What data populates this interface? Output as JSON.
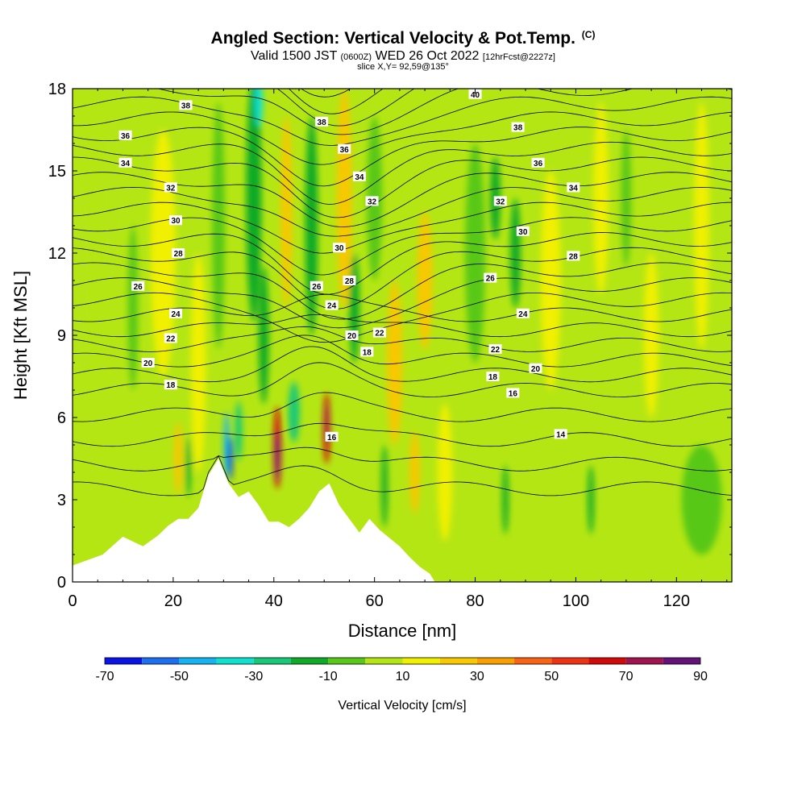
{
  "header": {
    "title": "Angled Section: Vertical Velocity & Pot.Temp.",
    "copyright": "(C)",
    "valid_prefix": "Valid 1500 JST",
    "valid_utc": "(0600Z)",
    "valid_date": "WED 26 Oct 2022",
    "forecast": "[12hrFcst@2227z]",
    "slice": "slice X,Y= 92,59@135°"
  },
  "chart_data": {
    "type": "heatmap",
    "xlabel": "Distance [nm]",
    "ylabel": "Height [Kft MSL]",
    "xlim": [
      0,
      131
    ],
    "ylim": [
      0,
      18
    ],
    "x_ticks": [
      0,
      20,
      40,
      60,
      80,
      100,
      120
    ],
    "y_ticks": [
      0,
      3,
      6,
      9,
      12,
      15,
      18
    ],
    "colorbar": {
      "title": "Vertical Velocity [cm/s]",
      "bounds": [
        -70,
        -60,
        -50,
        -40,
        -30,
        -20,
        -10,
        0,
        10,
        20,
        30,
        40,
        50,
        60,
        70,
        80,
        90
      ],
      "tick_labels": [
        "-70",
        "-50",
        "-30",
        "-10",
        "10",
        "30",
        "50",
        "70",
        "90"
      ],
      "colors": [
        "#0a14e6",
        "#1e6ef0",
        "#14b4f0",
        "#10e0d0",
        "#18c878",
        "#10aa28",
        "#58c818",
        "#b4e614",
        "#f0f000",
        "#f8c800",
        "#f8a000",
        "#f86414",
        "#f03214",
        "#d20a0a",
        "#a01450",
        "#641478"
      ]
    },
    "background_velocity": 0,
    "velocity_features": [
      {
        "x": 2,
        "y": 11,
        "w": 3,
        "h": 8,
        "v": 5
      },
      {
        "x": 8,
        "y": 14,
        "w": 4,
        "h": 6,
        "v": 5
      },
      {
        "x": 12,
        "y": 10,
        "w": 2,
        "h": 6,
        "v": -5
      },
      {
        "x": 18,
        "y": 12,
        "w": 5,
        "h": 9,
        "v": 15
      },
      {
        "x": 21,
        "y": 4.5,
        "w": 1.6,
        "h": 2.6,
        "v": 28
      },
      {
        "x": 23,
        "y": 4.2,
        "w": 1.0,
        "h": 2.2,
        "v": -12
      },
      {
        "x": 25,
        "y": 8,
        "w": 3,
        "h": 8,
        "v": 15
      },
      {
        "x": 29,
        "y": 13,
        "w": 2.5,
        "h": 9,
        "v": -8
      },
      {
        "x": 30.6,
        "y": 5.0,
        "w": 1.1,
        "h": 2.4,
        "v": -45
      },
      {
        "x": 31.4,
        "y": 4.5,
        "w": 0.8,
        "h": 1.6,
        "v": -68
      },
      {
        "x": 33,
        "y": 5.5,
        "w": 1.4,
        "h": 2.2,
        "v": -25
      },
      {
        "x": 36,
        "y": 14,
        "w": 3,
        "h": 9,
        "v": -12
      },
      {
        "x": 37,
        "y": 17.5,
        "w": 1.6,
        "h": 1.8,
        "v": -35
      },
      {
        "x": 38,
        "y": 9,
        "w": 2,
        "h": 5,
        "v": -15
      },
      {
        "x": 40.7,
        "y": 4.9,
        "w": 1.5,
        "h": 3.0,
        "v": 60
      },
      {
        "x": 40.7,
        "y": 4.6,
        "w": 0.8,
        "h": 1.8,
        "v": 88
      },
      {
        "x": 42.5,
        "y": 13.5,
        "w": 2.2,
        "h": 7,
        "v": 25
      },
      {
        "x": 44,
        "y": 6.2,
        "w": 2.2,
        "h": 2.2,
        "v": -25
      },
      {
        "x": 47.5,
        "y": 13,
        "w": 2.5,
        "h": 8,
        "v": -12
      },
      {
        "x": 50.5,
        "y": 5.6,
        "w": 1.3,
        "h": 2.6,
        "v": 62
      },
      {
        "x": 50.5,
        "y": 5.8,
        "w": 0.7,
        "h": 1.5,
        "v": 78
      },
      {
        "x": 54,
        "y": 14,
        "w": 3,
        "h": 8,
        "v": 25
      },
      {
        "x": 56,
        "y": 10,
        "w": 2,
        "h": 4,
        "v": -15
      },
      {
        "x": 60,
        "y": 14,
        "w": 3,
        "h": 6,
        "v": -8
      },
      {
        "x": 62,
        "y": 3.5,
        "w": 1.2,
        "h": 3.0,
        "v": -18
      },
      {
        "x": 64,
        "y": 8,
        "w": 3,
        "h": 6,
        "v": 25
      },
      {
        "x": 68,
        "y": 4.0,
        "w": 2.0,
        "h": 3.0,
        "v": 28
      },
      {
        "x": 70,
        "y": 11,
        "w": 3,
        "h": 5,
        "v": 22
      },
      {
        "x": 74,
        "y": 4,
        "w": 3,
        "h": 5,
        "v": 15
      },
      {
        "x": 80,
        "y": 12,
        "w": 4,
        "h": 8,
        "v": -5
      },
      {
        "x": 84,
        "y": 14,
        "w": 2,
        "h": 3,
        "v": -15
      },
      {
        "x": 86,
        "y": 3,
        "w": 1.2,
        "h": 2.5,
        "v": -15
      },
      {
        "x": 88,
        "y": 12,
        "w": 2,
        "h": 4,
        "v": -12
      },
      {
        "x": 95,
        "y": 11,
        "w": 4,
        "h": 8,
        "v": 10
      },
      {
        "x": 103,
        "y": 3,
        "w": 1.2,
        "h": 2.5,
        "v": -15
      },
      {
        "x": 105,
        "y": 14,
        "w": 3,
        "h": 7,
        "v": 12
      },
      {
        "x": 110,
        "y": 14,
        "w": 2,
        "h": 5,
        "v": -10
      },
      {
        "x": 115,
        "y": 9,
        "w": 3,
        "h": 6,
        "v": 12
      },
      {
        "x": 125,
        "y": 13,
        "w": 3,
        "h": 9,
        "v": 10
      },
      {
        "x": 125,
        "y": 3,
        "w": 8,
        "h": 4,
        "v": -5
      }
    ],
    "terrain": [
      [
        0,
        0.6
      ],
      [
        6,
        1
      ],
      [
        10,
        1.65
      ],
      [
        14,
        1.3
      ],
      [
        17,
        1.7
      ],
      [
        19,
        2.05
      ],
      [
        21,
        2.3
      ],
      [
        23,
        2.3
      ],
      [
        25,
        2.7
      ],
      [
        27,
        3.9
      ],
      [
        29,
        4.5
      ],
      [
        31,
        3.6
      ],
      [
        33,
        3.1
      ],
      [
        35,
        3.3
      ],
      [
        37,
        2.8
      ],
      [
        39,
        2.2
      ],
      [
        41,
        2.2
      ],
      [
        43,
        2.0
      ],
      [
        45,
        2.3
      ],
      [
        47,
        2.7
      ],
      [
        49,
        3.3
      ],
      [
        51,
        3.6
      ],
      [
        53,
        2.8
      ],
      [
        55,
        2.3
      ],
      [
        57,
        1.8
      ],
      [
        59,
        2.3
      ],
      [
        61,
        1.9
      ],
      [
        63,
        1.6
      ],
      [
        65,
        1.3
      ],
      [
        67,
        0.9
      ],
      [
        69,
        0.55
      ],
      [
        71,
        0.3
      ],
      [
        72,
        0
      ],
      [
        131,
        0
      ]
    ],
    "theta_contours": {
      "levels": [
        14,
        16,
        18,
        20,
        22,
        24,
        26,
        28,
        30,
        32,
        34,
        36,
        38,
        40
      ],
      "labels": [
        {
          "text": "14",
          "x": 97,
          "y": 5.4
        },
        {
          "text": "16",
          "x": 51.5,
          "y": 5.3
        },
        {
          "text": "16",
          "x": 87.5,
          "y": 6.9
        },
        {
          "text": "18",
          "x": 19.5,
          "y": 7.2
        },
        {
          "text": "18",
          "x": 58.5,
          "y": 8.4
        },
        {
          "text": "18",
          "x": 83.5,
          "y": 7.5
        },
        {
          "text": "20",
          "x": 15,
          "y": 8.0
        },
        {
          "text": "20",
          "x": 55.5,
          "y": 9.0
        },
        {
          "text": "20",
          "x": 92,
          "y": 7.8
        },
        {
          "text": "22",
          "x": 19.5,
          "y": 8.9
        },
        {
          "text": "22",
          "x": 61,
          "y": 9.1
        },
        {
          "text": "22",
          "x": 84,
          "y": 8.5
        },
        {
          "text": "24",
          "x": 20.5,
          "y": 9.8
        },
        {
          "text": "24",
          "x": 51.5,
          "y": 10.1
        },
        {
          "text": "24",
          "x": 89.5,
          "y": 9.8
        },
        {
          "text": "26",
          "x": 13,
          "y": 10.8
        },
        {
          "text": "26",
          "x": 48.5,
          "y": 10.8
        },
        {
          "text": "26",
          "x": 83,
          "y": 11.1
        },
        {
          "text": "28",
          "x": 21,
          "y": 12.0
        },
        {
          "text": "28",
          "x": 55,
          "y": 11.0
        },
        {
          "text": "28",
          "x": 99.5,
          "y": 11.9
        },
        {
          "text": "30",
          "x": 20.5,
          "y": 13.2
        },
        {
          "text": "30",
          "x": 53,
          "y": 12.2
        },
        {
          "text": "30",
          "x": 89.5,
          "y": 12.8
        },
        {
          "text": "32",
          "x": 19.5,
          "y": 14.4
        },
        {
          "text": "32",
          "x": 59.5,
          "y": 13.9
        },
        {
          "text": "32",
          "x": 85,
          "y": 13.9
        },
        {
          "text": "34",
          "x": 10.5,
          "y": 15.3
        },
        {
          "text": "34",
          "x": 57,
          "y": 14.8
        },
        {
          "text": "34",
          "x": 99.5,
          "y": 14.4
        },
        {
          "text": "36",
          "x": 10.5,
          "y": 16.3
        },
        {
          "text": "36",
          "x": 54,
          "y": 15.8
        },
        {
          "text": "36",
          "x": 92.5,
          "y": 15.3
        },
        {
          "text": "38",
          "x": 22.5,
          "y": 17.4
        },
        {
          "text": "38",
          "x": 49.5,
          "y": 16.8
        },
        {
          "text": "38",
          "x": 88.5,
          "y": 16.6
        },
        {
          "text": "40",
          "x": 80,
          "y": 17.8
        }
      ]
    }
  }
}
